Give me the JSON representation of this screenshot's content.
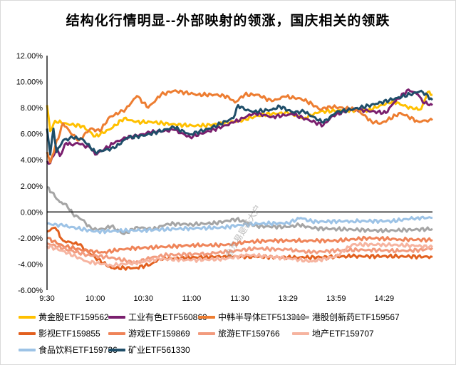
{
  "title": "结构化行情明显--外部映射的领涨，国庆相关的领跌",
  "watermark": "@东易是基大户",
  "chart_data": {
    "type": "line",
    "title": "结构化行情明显--外部映射的领涨，国庆相关的领跌",
    "xlabel": "",
    "ylabel": "",
    "x_unit": "trading minutes since 9:30",
    "xlim": [
      0,
      240
    ],
    "ylim": [
      -6,
      12
    ],
    "y_ticks": [
      12,
      10,
      8,
      6,
      4,
      2,
      0,
      -2,
      -4,
      -6
    ],
    "y_tick_labels": [
      "12.00%",
      "10.00%",
      "8.00%",
      "6.00%",
      "4.00%",
      "2.00%",
      "0.00%",
      "-2.00%",
      "-4.00%",
      "-6.00%"
    ],
    "x_ticks": [
      0,
      30,
      60,
      90,
      120,
      150,
      180,
      210
    ],
    "x_tick_labels": [
      "9:30",
      "10:00",
      "10:30",
      "11:00",
      "11:30",
      "13:29",
      "13:59",
      "14:29"
    ],
    "grid": false,
    "legend_position": "bottom",
    "series": [
      {
        "name": "黄金股ETF159562",
        "color": "#ffc000",
        "points": [
          [
            0,
            8.2
          ],
          [
            2,
            6.2
          ],
          [
            5,
            7.0
          ],
          [
            10,
            6.8
          ],
          [
            15,
            6.7
          ],
          [
            22,
            6.6
          ],
          [
            30,
            5.8
          ],
          [
            40,
            6.4
          ],
          [
            48,
            7.2
          ],
          [
            55,
            6.9
          ],
          [
            65,
            6.9
          ],
          [
            80,
            6.7
          ],
          [
            95,
            6.6
          ],
          [
            110,
            6.8
          ],
          [
            120,
            7.0
          ],
          [
            135,
            7.5
          ],
          [
            150,
            7.6
          ],
          [
            160,
            7.2
          ],
          [
            170,
            7.7
          ],
          [
            185,
            7.8
          ],
          [
            200,
            7.8
          ],
          [
            215,
            8.5
          ],
          [
            228,
            7.9
          ],
          [
            233,
            7.9
          ],
          [
            237,
            9.2
          ],
          [
            240,
            9.0
          ]
        ]
      },
      {
        "name": "工业有色ETF560860",
        "color": "#7a1f6e",
        "points": [
          [
            0,
            3.9
          ],
          [
            2,
            3.75
          ],
          [
            6,
            4.9
          ],
          [
            8,
            4.3
          ],
          [
            12,
            5.3
          ],
          [
            16,
            5.1
          ],
          [
            19,
            5.3
          ],
          [
            27,
            4.9
          ],
          [
            30,
            4.4
          ],
          [
            42,
            5.3
          ],
          [
            49,
            5.7
          ],
          [
            56,
            5.85
          ],
          [
            64,
            6.1
          ],
          [
            79,
            6.3
          ],
          [
            89,
            5.75
          ],
          [
            101,
            6.2
          ],
          [
            116,
            6.85
          ],
          [
            129,
            7.6
          ],
          [
            140,
            7.3
          ],
          [
            153,
            7.5
          ],
          [
            172,
            6.65
          ],
          [
            178,
            7.4
          ],
          [
            190,
            7.9
          ],
          [
            200,
            7.75
          ],
          [
            211,
            7.6
          ],
          [
            216,
            8.4
          ],
          [
            225,
            9.4
          ],
          [
            231,
            9.0
          ],
          [
            234,
            8.4
          ],
          [
            240,
            8.2
          ]
        ]
      },
      {
        "name": "中韩半导体ETF513310",
        "color": "#ed7d31",
        "points": [
          [
            0,
            4.6
          ],
          [
            2,
            3.8
          ],
          [
            5,
            5.0
          ],
          [
            10,
            6.8
          ],
          [
            16,
            5.9
          ],
          [
            20,
            5.5
          ],
          [
            27,
            6.4
          ],
          [
            33,
            6.2
          ],
          [
            39,
            7.3
          ],
          [
            45,
            7.6
          ],
          [
            49,
            7.9
          ],
          [
            56,
            8.9
          ],
          [
            63,
            8.0
          ],
          [
            71,
            9.0
          ],
          [
            79,
            9.3
          ],
          [
            94,
            9.0
          ],
          [
            105,
            9.0
          ],
          [
            113,
            8.85
          ],
          [
            117,
            8.4
          ],
          [
            123,
            9.0
          ],
          [
            131,
            9.0
          ],
          [
            140,
            8.5
          ],
          [
            148,
            8.85
          ],
          [
            158,
            8.7
          ],
          [
            165,
            8.3
          ],
          [
            170,
            7.85
          ],
          [
            176,
            8.1
          ],
          [
            193,
            7.85
          ],
          [
            202,
            6.95
          ],
          [
            208,
            6.8
          ],
          [
            220,
            7.6
          ],
          [
            231,
            6.95
          ],
          [
            240,
            7.05
          ]
        ]
      },
      {
        "name": "港股创新药ETF159567",
        "color": "#a5a5a5",
        "points": [
          [
            0,
            1.9
          ],
          [
            3,
            1.5
          ],
          [
            8,
            0.75
          ],
          [
            12,
            0.6
          ],
          [
            16,
            -0.15
          ],
          [
            22,
            -0.6
          ],
          [
            28,
            -1.35
          ],
          [
            35,
            -1.3
          ],
          [
            40,
            -1.1
          ],
          [
            48,
            -1.7
          ],
          [
            56,
            -1.15
          ],
          [
            66,
            -1.35
          ],
          [
            75,
            -0.9
          ],
          [
            90,
            -0.95
          ],
          [
            105,
            -0.85
          ],
          [
            118,
            -0.55
          ],
          [
            131,
            -1.1
          ],
          [
            150,
            -1.15
          ],
          [
            157,
            -1.0
          ],
          [
            166,
            -1.25
          ],
          [
            190,
            -1.35
          ],
          [
            210,
            -1.45
          ],
          [
            240,
            -1.3
          ]
        ]
      },
      {
        "name": "影视ETF159855",
        "color": "#e2601f",
        "points": [
          [
            0,
            -1.5
          ],
          [
            5,
            -1.2
          ],
          [
            10,
            -2.2
          ],
          [
            20,
            -2.5
          ],
          [
            30,
            -3.5
          ],
          [
            40,
            -4.3
          ],
          [
            55,
            -4.3
          ],
          [
            65,
            -4.0
          ],
          [
            70,
            -3.6
          ],
          [
            90,
            -3.5
          ],
          [
            110,
            -3.4
          ],
          [
            130,
            -3.45
          ],
          [
            160,
            -3.5
          ],
          [
            190,
            -3.4
          ],
          [
            220,
            -3.4
          ],
          [
            240,
            -3.45
          ]
        ]
      },
      {
        "name": "游戏ETF159869",
        "color": "#ef8459",
        "points": [
          [
            0,
            -2.0
          ],
          [
            10,
            -2.6
          ],
          [
            25,
            -3.0
          ],
          [
            35,
            -3.1
          ],
          [
            50,
            -2.8
          ],
          [
            70,
            -2.7
          ],
          [
            90,
            -2.55
          ],
          [
            110,
            -2.55
          ],
          [
            125,
            -2.3
          ],
          [
            140,
            -2.2
          ],
          [
            160,
            -2.2
          ],
          [
            180,
            -2.2
          ],
          [
            200,
            -2.0
          ],
          [
            220,
            -2.1
          ],
          [
            240,
            -2.15
          ]
        ]
      },
      {
        "name": "旅游ETF159766",
        "color": "#f29b7e",
        "points": [
          [
            0,
            -2.4
          ],
          [
            10,
            -2.8
          ],
          [
            25,
            -3.3
          ],
          [
            40,
            -3.5
          ],
          [
            55,
            -3.9
          ],
          [
            65,
            -3.5
          ],
          [
            75,
            -3.3
          ],
          [
            100,
            -3.2
          ],
          [
            115,
            -3.0
          ],
          [
            130,
            -2.8
          ],
          [
            150,
            -2.9
          ],
          [
            165,
            -3.1
          ],
          [
            180,
            -2.95
          ],
          [
            200,
            -2.9
          ],
          [
            220,
            -3.0
          ],
          [
            235,
            -2.9
          ],
          [
            240,
            -2.75
          ]
        ]
      },
      {
        "name": "地产ETF159707",
        "color": "#f6b4a0",
        "points": [
          [
            0,
            -2.6
          ],
          [
            10,
            -3.0
          ],
          [
            25,
            -3.8
          ],
          [
            40,
            -4.1
          ],
          [
            55,
            -3.9
          ],
          [
            70,
            -3.6
          ],
          [
            90,
            -3.7
          ],
          [
            110,
            -3.6
          ],
          [
            125,
            -3.3
          ],
          [
            150,
            -3.55
          ],
          [
            165,
            -3.8
          ],
          [
            180,
            -3.4
          ],
          [
            190,
            -2.5
          ],
          [
            210,
            -2.5
          ],
          [
            230,
            -2.6
          ],
          [
            240,
            -2.7
          ]
        ]
      },
      {
        "name": "食品饮料ETF159736",
        "color": "#9dc3e6",
        "points": [
          [
            0,
            -0.9
          ],
          [
            10,
            -1.05
          ],
          [
            30,
            -1.5
          ],
          [
            60,
            -1.4
          ],
          [
            90,
            -1.25
          ],
          [
            110,
            -1.2
          ],
          [
            120,
            -1.0
          ],
          [
            131,
            -0.9
          ],
          [
            150,
            -0.85
          ],
          [
            158,
            -0.45
          ],
          [
            165,
            -0.75
          ],
          [
            190,
            -0.7
          ],
          [
            215,
            -0.7
          ],
          [
            230,
            -0.45
          ],
          [
            240,
            -0.45
          ]
        ]
      },
      {
        "name": "矿业ETF561330",
        "color": "#1f4e69",
        "points": [
          [
            0,
            6.4
          ],
          [
            2,
            4.4
          ],
          [
            4,
            6.4
          ],
          [
            6,
            4.6
          ],
          [
            10,
            5.5
          ],
          [
            16,
            5.7
          ],
          [
            22,
            5.6
          ],
          [
            30,
            4.6
          ],
          [
            42,
            4.9
          ],
          [
            50,
            5.7
          ],
          [
            60,
            5.85
          ],
          [
            79,
            6.5
          ],
          [
            89,
            5.95
          ],
          [
            101,
            6.4
          ],
          [
            116,
            7.2
          ],
          [
            119,
            8.2
          ],
          [
            123,
            7.85
          ],
          [
            129,
            7.7
          ],
          [
            140,
            7.85
          ],
          [
            145,
            8.1
          ],
          [
            153,
            7.65
          ],
          [
            160,
            7.7
          ],
          [
            172,
            6.85
          ],
          [
            180,
            7.65
          ],
          [
            195,
            8.0
          ],
          [
            205,
            8.3
          ],
          [
            218,
            8.75
          ],
          [
            228,
            9.1
          ],
          [
            233,
            9.3
          ],
          [
            240,
            8.6
          ]
        ]
      }
    ]
  }
}
